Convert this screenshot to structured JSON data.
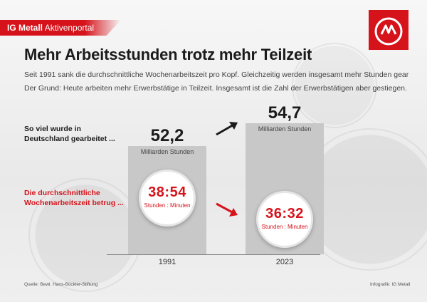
{
  "header": {
    "brand_bold": "IG Metall",
    "brand_light": "Aktivenportal"
  },
  "title": "Mehr Arbeitsstunden trotz mehr Teilzeit",
  "subtitle_lines": [
    "Seit 1991 sank die durchschnittliche Wochenarbeitszeit pro Kopf. Gleichzeitig werden insgesamt mehr Stunden gearbeitet.",
    "Der Grund: Heute arbeiten mehr Erwerbstätige in Teilzeit. Insgesamt ist die Zahl der Erwerbstätigen aber gestiegen."
  ],
  "labels": {
    "hours_worked": [
      "So viel wurde in",
      "Deutschland gearbeitet ..."
    ],
    "weekly_hours": [
      "Die durchschnittliche",
      "Wochenarbeitszeit betrug ..."
    ]
  },
  "chart_data": {
    "type": "bar",
    "categories": [
      "1991",
      "2023"
    ],
    "values": [
      52.2,
      54.7
    ],
    "value_labels": [
      "52,2",
      "54,7"
    ],
    "unit": "Milliarden Stunden",
    "weekly_hours": {
      "values": [
        "38:54",
        "36:32"
      ],
      "unit": "Stunden : Minuten"
    },
    "colors": {
      "bar": "#c8c8c8",
      "accent": "#d6131b"
    }
  },
  "footer": {
    "source": "Quelle: Bewl. Hans-Böckler-Stiftung",
    "credit": "Infografik: IG Metall"
  }
}
